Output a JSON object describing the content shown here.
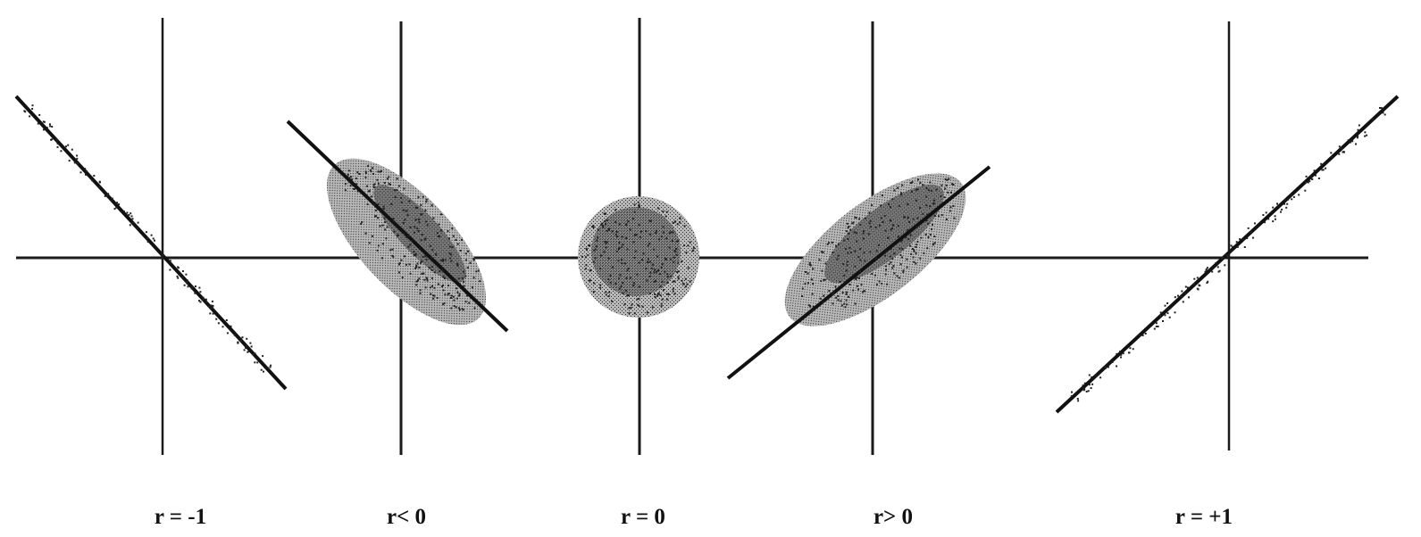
{
  "figure": {
    "panels": [
      {
        "label": "r = -1",
        "shape": "line",
        "slope": "negative"
      },
      {
        "label": "r< 0",
        "shape": "ellipse",
        "slope": "negative"
      },
      {
        "label": "r = 0",
        "shape": "circle",
        "slope": "none"
      },
      {
        "label": "r> 0",
        "shape": "ellipse",
        "slope": "positive"
      },
      {
        "label": "r = +1",
        "shape": "line",
        "slope": "positive"
      }
    ],
    "colors": {
      "ink": "#111111",
      "axis": "#1a1a1a",
      "cloud_fill": "#9a9a9a",
      "dot": "#222222"
    }
  }
}
